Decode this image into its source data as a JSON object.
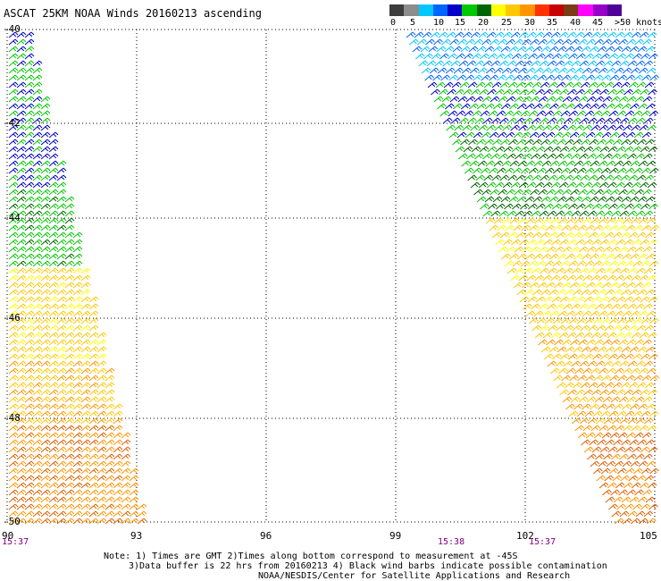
{
  "title": "ASCAT 25KM NOAA Winds 20160213 ascending",
  "legend": {
    "labels": [
      "0",
      "5",
      "10",
      "15",
      "20",
      "25",
      "30",
      "35",
      "40",
      "45",
      ">50 knots"
    ],
    "colors": [
      "#3c3c3c",
      "#8c8c8c",
      "#00c8ff",
      "#0064ff",
      "#0000c8",
      "#00c800",
      "#006400",
      "#ffff00",
      "#ffc800",
      "#ff9600",
      "#ff3200",
      "#c80000",
      "#7a3c14",
      "#ff00ff",
      "#9600c8",
      "#500096"
    ]
  },
  "map": {
    "lat_labels": [
      "-40",
      "-42",
      "-44",
      "-46",
      "-48",
      "-50"
    ],
    "lon_labels": [
      "90",
      "93",
      "96",
      "99",
      "102",
      "105"
    ],
    "time_labels": [
      "15:37",
      "15:38",
      "15:37"
    ],
    "lat_range": [
      -50,
      -40
    ],
    "lon_range": [
      90,
      105
    ]
  },
  "notes": {
    "line1": "Note: 1) Times are GMT 2)Times along bottom correspond to measurement at -45S",
    "line2": "3)Data buffer is 22 hrs from 20160213 4) Black wind barbs indicate possible contamination",
    "line3": "NOAA/NESDIS/Center for Satellite Applications and Research"
  }
}
